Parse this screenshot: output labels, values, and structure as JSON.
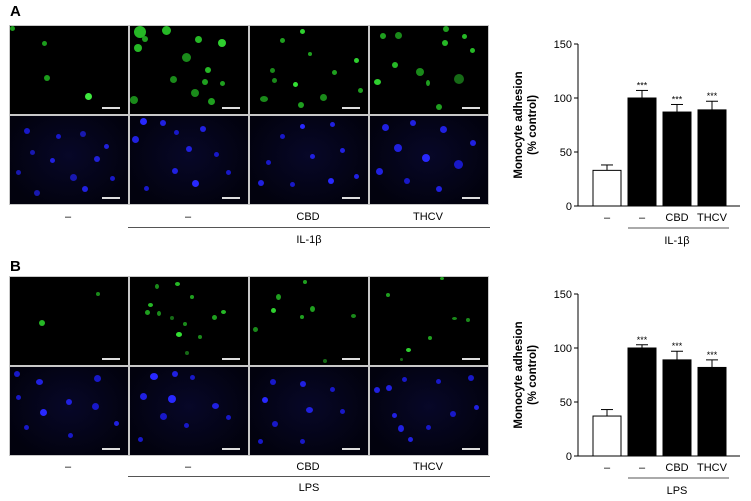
{
  "panels": [
    {
      "letter": "A",
      "conditions": [
        "–",
        "–",
        "CBD",
        "THCV"
      ],
      "group_label": "IL-1β",
      "micrograph_rows": [
        "green-fluorescence",
        "blue-dapi"
      ]
    },
    {
      "letter": "B",
      "conditions": [
        "–",
        "–",
        "CBD",
        "THCV"
      ],
      "group_label": "LPS",
      "micrograph_rows": [
        "green-fluorescence",
        "blue-dapi"
      ]
    }
  ],
  "colors": {
    "gfp": "#22dd22",
    "dapi": "#1a1aff",
    "control_bar": "#ffffff",
    "treated_bar": "#000000"
  },
  "chart_data": [
    {
      "type": "bar",
      "panel": "A",
      "title": "",
      "ylabel": "Monocyte adhesion (% control)",
      "ylabel_lines": [
        "Monocyte adhesion",
        "(% control)"
      ],
      "xlabel": "",
      "categories": [
        "–",
        "–",
        "CBD",
        "THCV"
      ],
      "group_label": "IL-1β",
      "values": [
        33,
        100,
        87,
        89
      ],
      "errors": [
        5,
        7,
        7,
        8
      ],
      "significance": [
        "",
        "***",
        "***",
        "***"
      ],
      "bar_fill": [
        "white",
        "black",
        "black",
        "black"
      ],
      "ylim": [
        0,
        150
      ],
      "yticks": [
        0,
        50,
        100,
        150
      ],
      "grid": false,
      "legend": null
    },
    {
      "type": "bar",
      "panel": "B",
      "title": "",
      "ylabel": "Monocyte adhesion (% control)",
      "ylabel_lines": [
        "Monocyte adhesion",
        "(% control)"
      ],
      "xlabel": "",
      "categories": [
        "–",
        "–",
        "CBD",
        "THCV"
      ],
      "group_label": "LPS",
      "values": [
        37,
        100,
        89,
        82
      ],
      "errors": [
        6,
        3,
        8,
        7
      ],
      "significance": [
        "",
        "***",
        "***",
        "***"
      ],
      "bar_fill": [
        "white",
        "black",
        "black",
        "black"
      ],
      "ylim": [
        0,
        150
      ],
      "yticks": [
        0,
        50,
        100,
        150
      ],
      "grid": false,
      "legend": null
    }
  ]
}
